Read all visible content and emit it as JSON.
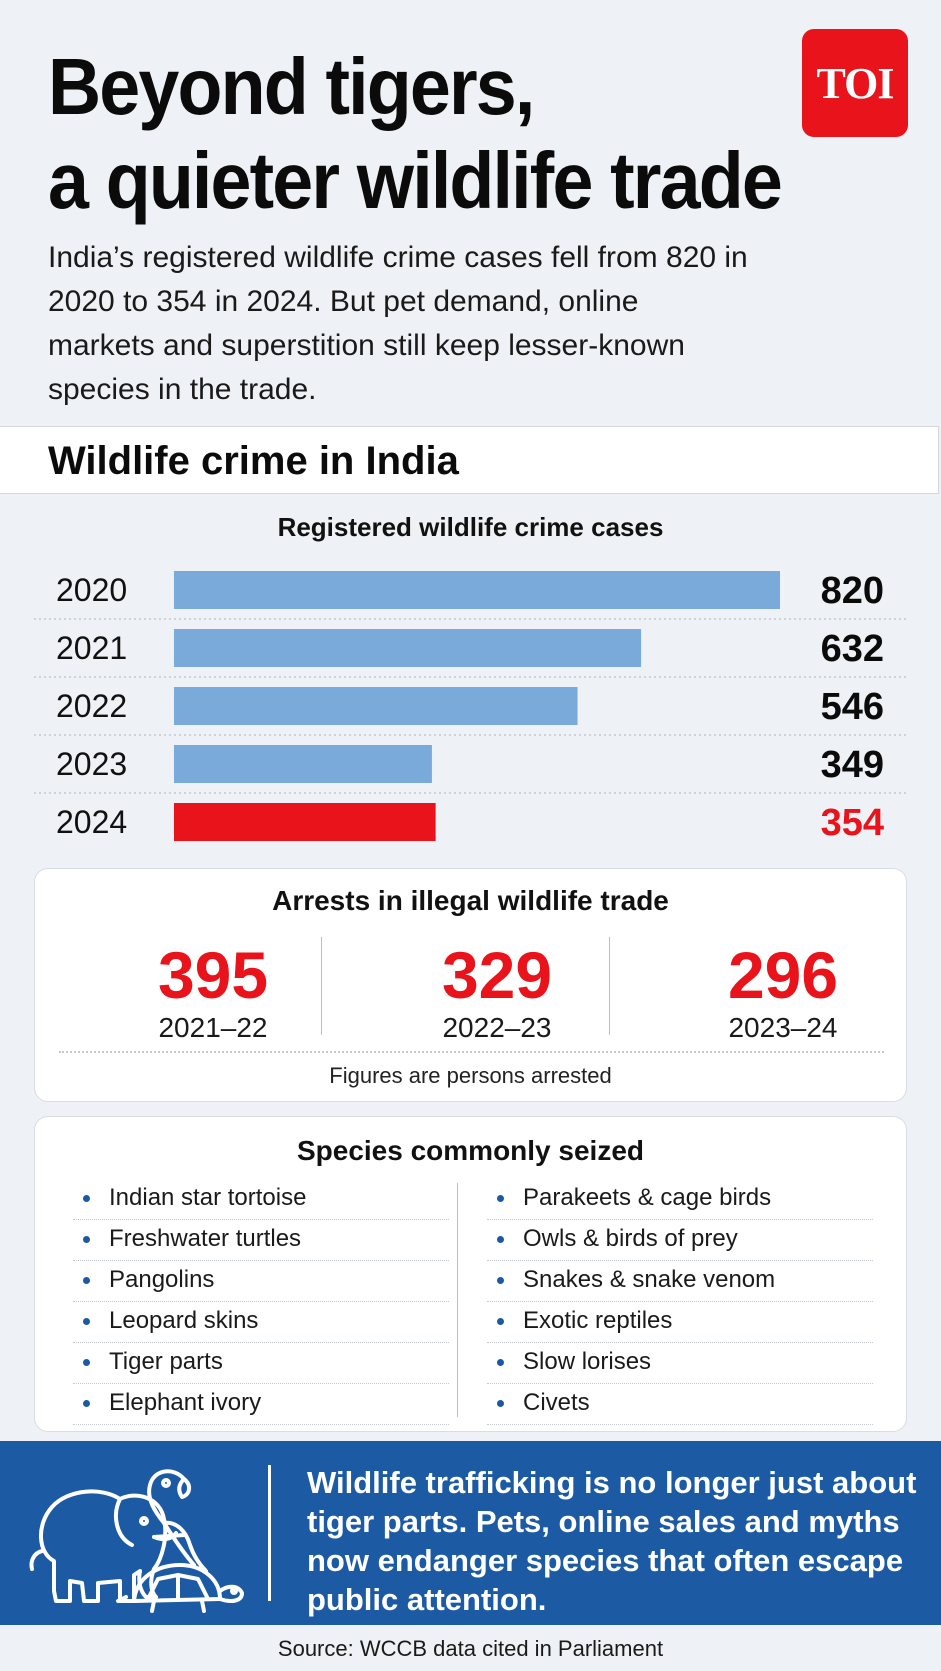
{
  "headline": [
    "Beyond tigers,",
    "a quieter wildlife trade"
  ],
  "logo": "TOI",
  "intro": "India’s registered wildlife crime cases fell from 820 in 2020 to 354 in 2024. But pet demand, online markets and superstition still keep lesser-known species in the trade.",
  "section_title": "Wildlife crime in India",
  "chart_data": {
    "type": "bar",
    "orientation": "horizontal",
    "title": "Registered wildlife crime cases",
    "categories": [
      "2020",
      "2021",
      "2022",
      "2023",
      "2024"
    ],
    "values": [
      820,
      632,
      546,
      349,
      354
    ],
    "value_labels": [
      "820",
      "632",
      "546",
      "349",
      "354"
    ],
    "xlim": [
      0,
      820
    ],
    "highlight": "2024",
    "colors": {
      "bar": "#7aaad9",
      "highlight": "#e8131b",
      "label": "#0b0b0b"
    },
    "grid": false
  },
  "arrests": {
    "title": "Arrests in illegal wildlife trade",
    "items": [
      {
        "value": "395",
        "period": "2021–22"
      },
      {
        "value": "329",
        "period": "2022–23"
      },
      {
        "value": "296",
        "period": "2023–24"
      }
    ],
    "note": "Figures are persons arrested"
  },
  "species": {
    "title": "Species commonly seized",
    "left": [
      "Indian star tortoise",
      "Freshwater turtles",
      "Pangolins",
      "Leopard skins",
      "Tiger parts",
      "Elephant ivory"
    ],
    "right": [
      "Parakeets & cage birds",
      "Owls & birds of prey",
      "Snakes & snake venom",
      "Exotic reptiles",
      "Slow lorises",
      "Civets"
    ]
  },
  "banner": {
    "icons": [
      "elephant-icon",
      "parrot-icon",
      "tortoise-icon"
    ],
    "text": "Wildlife trafficking is no longer just about tiger parts. Pets, online sales and myths now endanger species that often escape public attention."
  },
  "source": "Source: WCCB data cited in Parliament"
}
